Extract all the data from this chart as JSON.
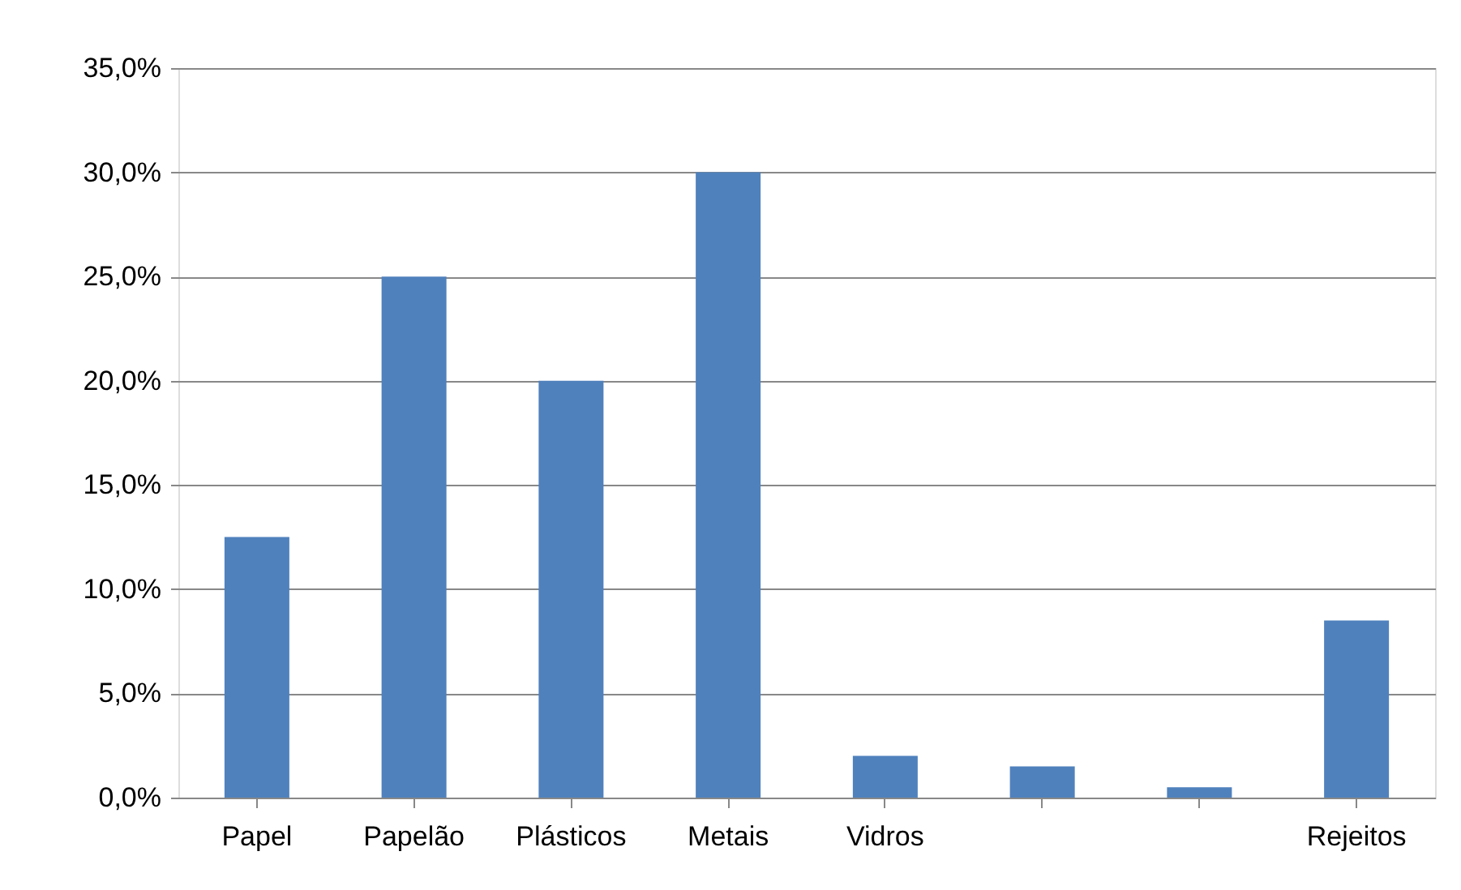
{
  "chart_data": {
    "type": "bar",
    "categories": [
      "Papel",
      "Papelão",
      "Plásticos",
      "Metais",
      "Vidros",
      null,
      null,
      "Rejeitos"
    ],
    "values": [
      12.5,
      25,
      20,
      30,
      2,
      1.5,
      0.5,
      8.5
    ],
    "color": "#4f81bd",
    "ylim": [
      0,
      35
    ],
    "yticks": [
      {
        "value": 0,
        "label": "0,0%"
      },
      {
        "value": 5,
        "label": "5,0%"
      },
      {
        "value": 10,
        "label": "10,0%"
      },
      {
        "value": 15,
        "label": "15,0%"
      },
      {
        "value": 20,
        "label": "20,0%"
      },
      {
        "value": 25,
        "label": "25,0%"
      },
      {
        "value": 30,
        "label": "30,0%"
      },
      {
        "value": 35,
        "label": "35,0%"
      }
    ],
    "grid": "y"
  }
}
